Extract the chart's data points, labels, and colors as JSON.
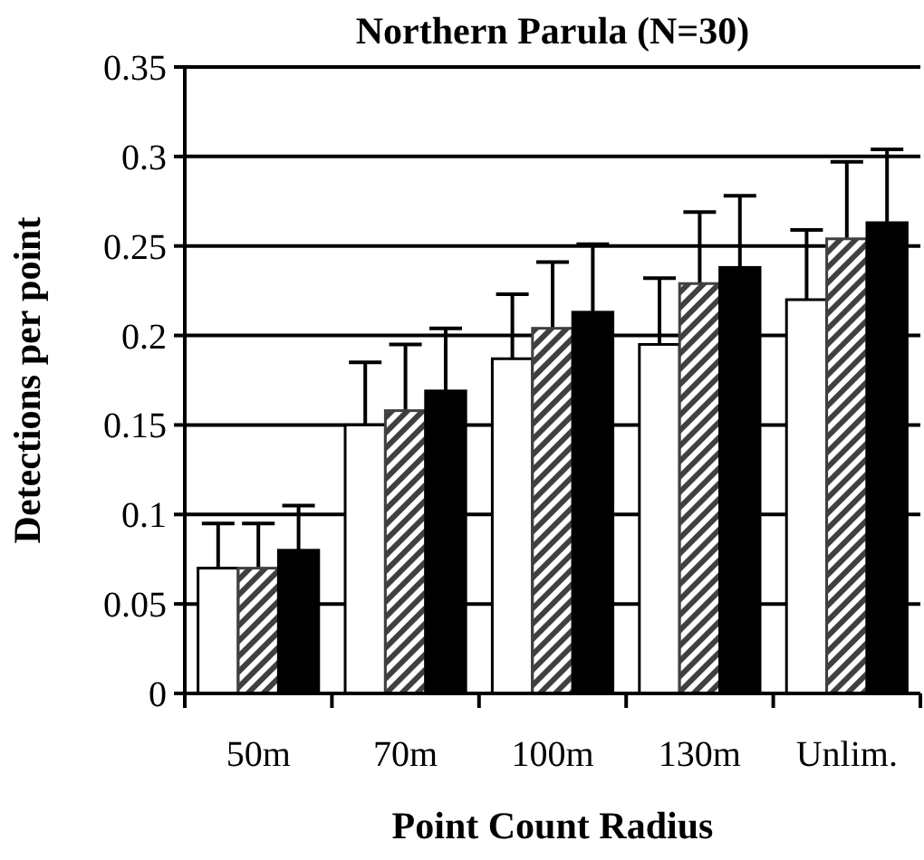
{
  "chart_data": {
    "type": "bar",
    "title": "Northern Parula (N=30)",
    "xlabel": "Point Count Radius",
    "ylabel": "Detections per point",
    "categories": [
      "50m",
      "70m",
      "100m",
      "130m",
      "Unlim."
    ],
    "series": [
      {
        "color": "#ffffff",
        "values": [
          0.07,
          0.15,
          0.187,
          0.195,
          0.22
        ],
        "errors": [
          0.025,
          0.035,
          0.036,
          0.037,
          0.039
        ]
      },
      {
        "color": "#404040",
        "values": [
          0.07,
          0.158,
          0.204,
          0.229,
          0.254
        ],
        "errors": [
          0.025,
          0.037,
          0.037,
          0.04,
          0.043
        ]
      },
      {
        "color": "#000000",
        "values": [
          0.08,
          0.169,
          0.213,
          0.238,
          0.263
        ],
        "errors": [
          0.025,
          0.035,
          0.038,
          0.04,
          0.041
        ]
      }
    ],
    "ylim": [
      0,
      0.35
    ],
    "yticks": [
      0,
      0.05,
      0.1,
      0.15,
      0.2,
      0.25,
      0.3,
      0.35
    ],
    "grid": "y"
  }
}
